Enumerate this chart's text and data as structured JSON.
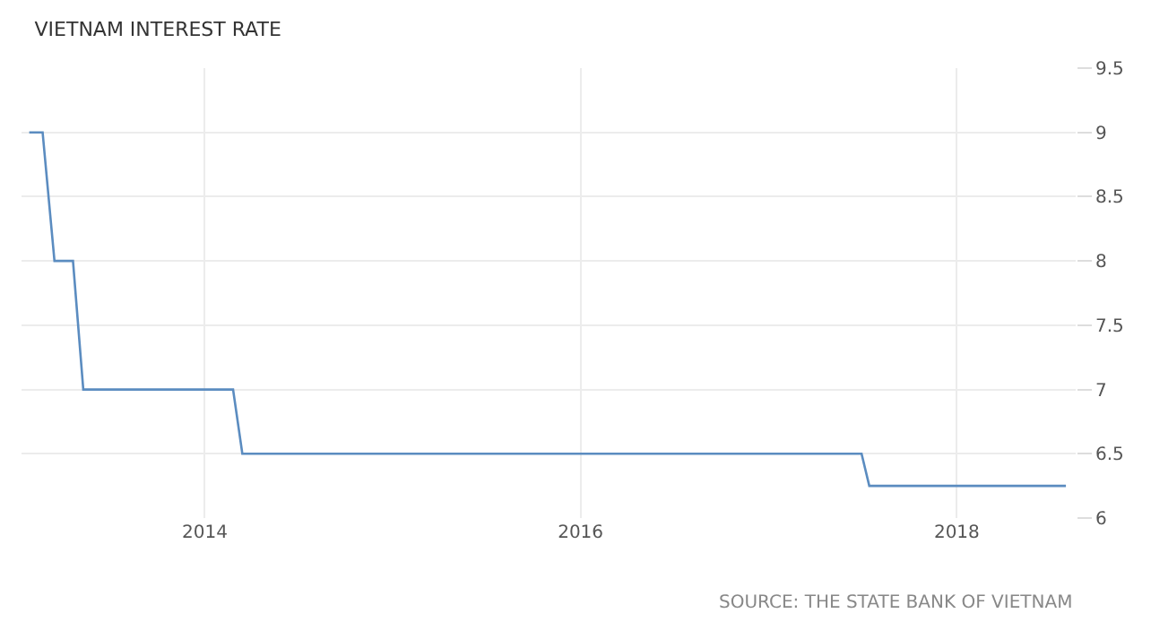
{
  "chart_data": {
    "type": "line",
    "title": "VIETNAM INTEREST RATE",
    "x": [
      "2013-01-25",
      "2013-02-20",
      "2013-03-15",
      "2013-04-20",
      "2013-05-10",
      "2014-02-25",
      "2014-03-15",
      "2017-06-30",
      "2017-07-15",
      "2018-08-01"
    ],
    "series": [
      {
        "color": "#5b8cc0",
        "values": [
          9,
          9,
          8,
          8,
          7,
          7,
          6.5,
          6.5,
          6.25,
          6.25
        ]
      }
    ],
    "xlim": [
      "2013-01-10",
      "2018-08-20"
    ],
    "xticks": [
      "2014",
      "2016",
      "2018"
    ],
    "ylim": [
      6,
      9.5
    ],
    "yticks": [
      6,
      6.5,
      7,
      7.5,
      8,
      8.5,
      9,
      9.5
    ],
    "grid": true,
    "marker": "none",
    "line_style": "solid",
    "annotations": [
      "SOURCE: THE STATE BANK OF VIETNAM"
    ]
  }
}
